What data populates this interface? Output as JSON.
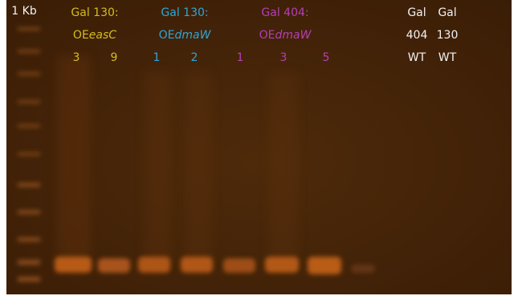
{
  "ladder_label": "1 Kb",
  "groups": [
    {
      "name": "Gal 130:",
      "construct_prefix": "OE",
      "construct_gene": "easC",
      "lanes": [
        "3",
        "9"
      ]
    },
    {
      "name": "Gal 130:",
      "construct_prefix": "OE",
      "construct_gene": "dmaW",
      "lanes": [
        "1",
        "2"
      ]
    },
    {
      "name": "Gal 404:",
      "construct_prefix": "OE",
      "construct_gene": "dmaW",
      "lanes": [
        "1",
        "3",
        "5"
      ]
    }
  ],
  "controls": [
    {
      "strain": "Gal",
      "number": "404",
      "genotype": "WT"
    },
    {
      "strain": "Gal",
      "number": "130",
      "genotype": "WT"
    }
  ]
}
